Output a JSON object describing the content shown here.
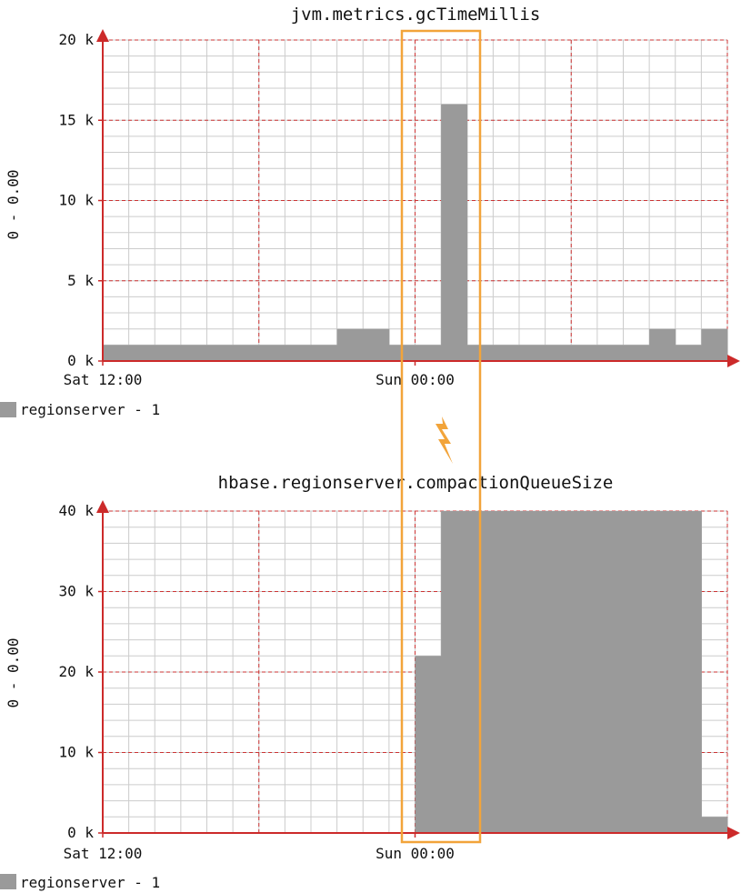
{
  "colors": {
    "bar": "#9a9a9a",
    "axis": "#cc2a2a",
    "major_grid": "#cc3333",
    "minor_grid": "#cccccc",
    "highlight": "#f2a43a"
  },
  "highlight": {
    "type": "box-with-lightning-icon",
    "icon": "lightning-icon",
    "spans_bins": [
      12,
      13
    ]
  },
  "chart_data": [
    {
      "type": "bar",
      "title": "jvm.metrics.gcTimeMillis",
      "ylabel": "0 - 0.00",
      "ylim": [
        0,
        20000
      ],
      "yticks": [
        0,
        5000,
        10000,
        15000,
        20000
      ],
      "ytick_labels": [
        "0 k",
        "5 k",
        "10 k",
        "15 k",
        "20 k"
      ],
      "xtick_labels": [
        "Sat 12:00",
        "Sun 00:00"
      ],
      "xtick_bins": [
        0,
        12
      ],
      "bins": 24,
      "series": [
        {
          "name": "regionserver - 1",
          "values": [
            1000,
            1000,
            1000,
            1000,
            1000,
            1000,
            1000,
            1000,
            1000,
            2000,
            2000,
            1000,
            1000,
            16000,
            1000,
            1000,
            1000,
            1000,
            1000,
            1000,
            1000,
            2000,
            1000,
            2000
          ]
        }
      ],
      "legend": "bottom-left",
      "grid": true
    },
    {
      "type": "bar",
      "title": "hbase.regionserver.compactionQueueSize",
      "ylabel": "0 - 0.00",
      "ylim": [
        0,
        40000
      ],
      "yticks": [
        0,
        10000,
        20000,
        30000,
        40000
      ],
      "ytick_labels": [
        "0 k",
        "10 k",
        "20 k",
        "30 k",
        "40 k"
      ],
      "xtick_labels": [
        "Sat 12:00",
        "Sun 00:00"
      ],
      "xtick_bins": [
        0,
        12
      ],
      "bins": 24,
      "series": [
        {
          "name": "regionserver - 1",
          "values": [
            0,
            0,
            0,
            0,
            0,
            0,
            0,
            0,
            0,
            0,
            0,
            0,
            22000,
            40000,
            40000,
            40000,
            40000,
            40000,
            40000,
            40000,
            40000,
            40000,
            40000,
            2000
          ]
        }
      ],
      "legend": "bottom-left",
      "grid": true
    }
  ]
}
